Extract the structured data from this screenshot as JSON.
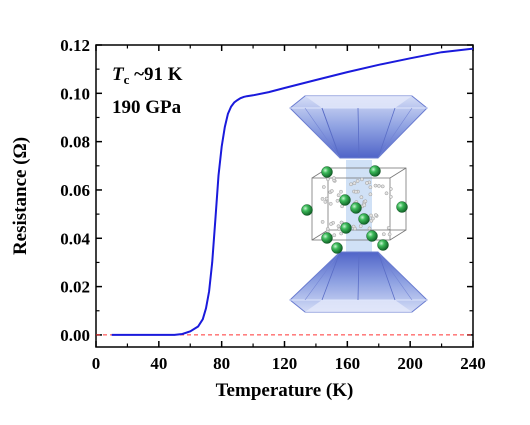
{
  "chart_data": {
    "type": "line",
    "xlabel": "Temperature (K)",
    "ylabel": "Resistance (Ω)",
    "xlim": [
      0,
      240
    ],
    "ylim": [
      -0.005,
      0.12
    ],
    "xticks": [
      "0",
      "40",
      "80",
      "120",
      "160",
      "200",
      "240"
    ],
    "yticks": [
      "0.00",
      "0.02",
      "0.04",
      "0.06",
      "0.08",
      "0.10",
      "0.12"
    ],
    "grid": false,
    "annotations": {
      "tc_symbol": "T",
      "tc_subscript": "c",
      "tc_value": " ~91 K",
      "pressure": "190 GPa"
    },
    "reference_line": {
      "y": 0.0,
      "style": "dashed",
      "color": "#ff3333"
    },
    "series": [
      {
        "color": "#1a1adc",
        "x": [
          10,
          20,
          30,
          40,
          50,
          55,
          60,
          65,
          68,
          70,
          72,
          74,
          76,
          78,
          80,
          82,
          84,
          86,
          88,
          90,
          92,
          94,
          96,
          100,
          110,
          120,
          140,
          160,
          180,
          200,
          220,
          240
        ],
        "y": [
          0.0,
          0.0,
          0.0,
          0.0,
          0.0,
          0.0004,
          0.0015,
          0.0035,
          0.0065,
          0.011,
          0.018,
          0.03,
          0.048,
          0.066,
          0.078,
          0.086,
          0.0915,
          0.0945,
          0.0962,
          0.0972,
          0.098,
          0.0985,
          0.0988,
          0.0992,
          0.1005,
          0.1022,
          0.1055,
          0.1088,
          0.1118,
          0.1145,
          0.117,
          0.1185
        ]
      }
    ]
  },
  "colors": {
    "diamond_light": "#c8d2f2",
    "diamond_mid": "#8d9fe0",
    "diamond_dark": "#4b5ec4",
    "atom_green": "#1f9a3c",
    "atom_green_light": "#bff0c9"
  },
  "inset_description_icon": "diamond-anvil-cell-icon"
}
